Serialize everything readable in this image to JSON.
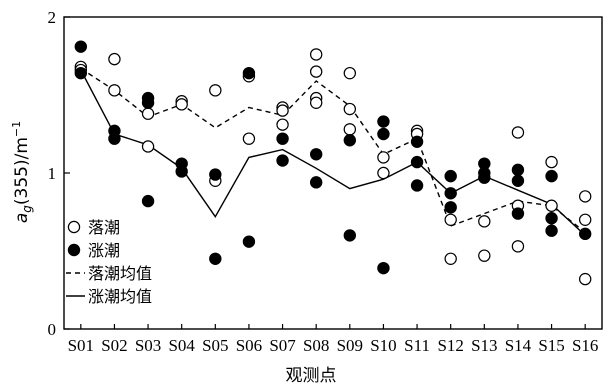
{
  "chart_data": {
    "type": "scatter",
    "title": "",
    "xlabel": "观测点",
    "ylabel_main": "a",
    "ylabel_sub": "g",
    "ylabel_rest": "(355)/m",
    "ylabel_sup": "−1",
    "ylim": [
      0,
      2
    ],
    "yticks": [
      "0",
      "1",
      "2"
    ],
    "categories": [
      "S01",
      "S02",
      "S03",
      "S04",
      "S05",
      "S06",
      "S07",
      "S08",
      "S09",
      "S10",
      "S11",
      "S12",
      "S13",
      "S14",
      "S15",
      "S16"
    ],
    "legend_position": "bottom-left",
    "series": [
      {
        "name": "落潮",
        "marker": "open-circle",
        "points": [
          [
            1,
            1.68
          ],
          [
            1,
            1.66
          ],
          [
            2,
            1.73
          ],
          [
            2,
            1.53
          ],
          [
            3,
            1.38
          ],
          [
            3,
            1.17
          ],
          [
            4,
            1.46
          ],
          [
            4,
            1.44
          ],
          [
            5,
            1.53
          ],
          [
            5,
            0.95
          ],
          [
            6,
            1.62
          ],
          [
            6,
            1.22
          ],
          [
            7,
            1.42
          ],
          [
            7,
            1.4
          ],
          [
            7,
            1.31
          ],
          [
            8,
            1.76
          ],
          [
            8,
            1.65
          ],
          [
            8,
            1.48
          ],
          [
            8,
            1.45
          ],
          [
            9,
            1.64
          ],
          [
            9,
            1.41
          ],
          [
            9,
            1.28
          ],
          [
            10,
            1.1
          ],
          [
            10,
            1.0
          ],
          [
            11,
            1.27
          ],
          [
            11,
            1.25
          ],
          [
            12,
            0.7
          ],
          [
            12,
            0.45
          ],
          [
            13,
            0.69
          ],
          [
            13,
            0.47
          ],
          [
            14,
            1.26
          ],
          [
            14,
            0.79
          ],
          [
            14,
            0.53
          ],
          [
            15,
            1.07
          ],
          [
            15,
            0.79
          ],
          [
            16,
            0.85
          ],
          [
            16,
            0.7
          ],
          [
            16,
            0.32
          ]
        ]
      },
      {
        "name": "涨潮",
        "marker": "filled-circle",
        "points": [
          [
            1,
            1.81
          ],
          [
            1,
            1.64
          ],
          [
            2,
            1.27
          ],
          [
            2,
            1.22
          ],
          [
            3,
            1.48
          ],
          [
            3,
            1.45
          ],
          [
            3,
            0.82
          ],
          [
            4,
            1.06
          ],
          [
            4,
            1.01
          ],
          [
            5,
            0.99
          ],
          [
            5,
            0.45
          ],
          [
            6,
            1.64
          ],
          [
            6,
            0.56
          ],
          [
            7,
            1.22
          ],
          [
            7,
            1.08
          ],
          [
            8,
            1.12
          ],
          [
            8,
            0.94
          ],
          [
            9,
            1.21
          ],
          [
            9,
            0.6
          ],
          [
            10,
            1.33
          ],
          [
            10,
            1.25
          ],
          [
            10,
            0.39
          ],
          [
            11,
            1.2
          ],
          [
            11,
            1.07
          ],
          [
            11,
            0.92
          ],
          [
            12,
            0.98
          ],
          [
            12,
            0.87
          ],
          [
            12,
            0.78
          ],
          [
            13,
            1.06
          ],
          [
            13,
            1.0
          ],
          [
            13,
            0.97
          ],
          [
            14,
            1.02
          ],
          [
            14,
            0.95
          ],
          [
            14,
            0.74
          ],
          [
            15,
            0.98
          ],
          [
            15,
            0.71
          ],
          [
            15,
            0.63
          ],
          [
            16,
            0.61
          ]
        ]
      },
      {
        "name": "落潮均值",
        "style": "dashed",
        "values": [
          1.67,
          1.53,
          1.36,
          1.44,
          1.29,
          1.42,
          1.37,
          1.59,
          1.43,
          1.12,
          1.22,
          0.66,
          0.74,
          0.82,
          0.79,
          0.62
        ]
      },
      {
        "name": "涨潮均值",
        "style": "solid",
        "values": [
          1.66,
          1.25,
          1.18,
          1.03,
          0.72,
          1.1,
          1.15,
          1.03,
          0.9,
          0.96,
          1.07,
          0.87,
          0.98,
          0.89,
          0.8,
          0.6
        ]
      }
    ]
  }
}
